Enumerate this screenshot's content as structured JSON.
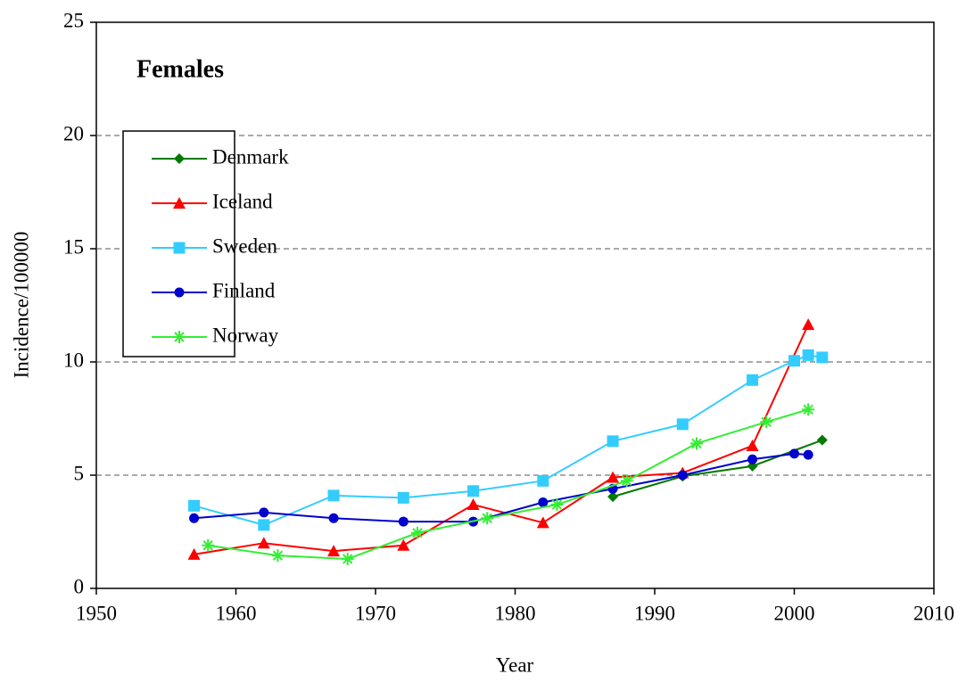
{
  "chart_data": {
    "type": "line",
    "annotation": "Females",
    "x_label": "Year",
    "y_label": "Incidence/100000",
    "xlim": [
      1950,
      2010
    ],
    "xticks": [
      1950,
      1960,
      1970,
      1980,
      1990,
      2000,
      2010
    ],
    "ylim": [
      0,
      25
    ],
    "yticks": [
      0,
      5,
      10,
      15,
      20,
      25
    ],
    "grid": true,
    "legend": "upper left",
    "series": [
      {
        "name": "Denmark",
        "color": "#007a00",
        "marker": "diamond",
        "x": [
          1987,
          1992,
          1997,
          2002
        ],
        "values": [
          4.05,
          4.95,
          5.4,
          6.55
        ]
      },
      {
        "name": "Iceland",
        "color": "#ff0000",
        "marker": "triangle",
        "x": [
          1957,
          1962,
          1967,
          1972,
          1977,
          1982,
          1987,
          1992,
          1997,
          2001
        ],
        "values": [
          1.5,
          2.0,
          1.65,
          1.9,
          3.7,
          2.9,
          4.9,
          5.1,
          6.3,
          11.65
        ]
      },
      {
        "name": "Sweden",
        "color": "#33ccff",
        "marker": "square",
        "x": [
          1957,
          1962,
          1967,
          1972,
          1977,
          1982,
          1987,
          1992,
          1997,
          2000,
          2001,
          2002
        ],
        "values": [
          3.65,
          2.8,
          4.1,
          4.0,
          4.3,
          4.75,
          6.5,
          7.25,
          9.2,
          10.05,
          10.3,
          10.2
        ]
      },
      {
        "name": "Finland",
        "color": "#0000cc",
        "marker": "circle",
        "x": [
          1957,
          1962,
          1967,
          1972,
          1977,
          1982,
          1987,
          1992,
          1997,
          2000,
          2001
        ],
        "values": [
          3.1,
          3.35,
          3.1,
          2.95,
          2.95,
          3.8,
          4.4,
          5.0,
          5.7,
          5.95,
          5.9
        ]
      },
      {
        "name": "Norway",
        "color": "#33ee33",
        "marker": "star",
        "x": [
          1958,
          1963,
          1968,
          1973,
          1978,
          1983,
          1988,
          1993,
          1998,
          2001
        ],
        "values": [
          1.9,
          1.45,
          1.3,
          2.45,
          3.1,
          3.7,
          4.75,
          6.4,
          7.35,
          7.9
        ]
      }
    ]
  }
}
